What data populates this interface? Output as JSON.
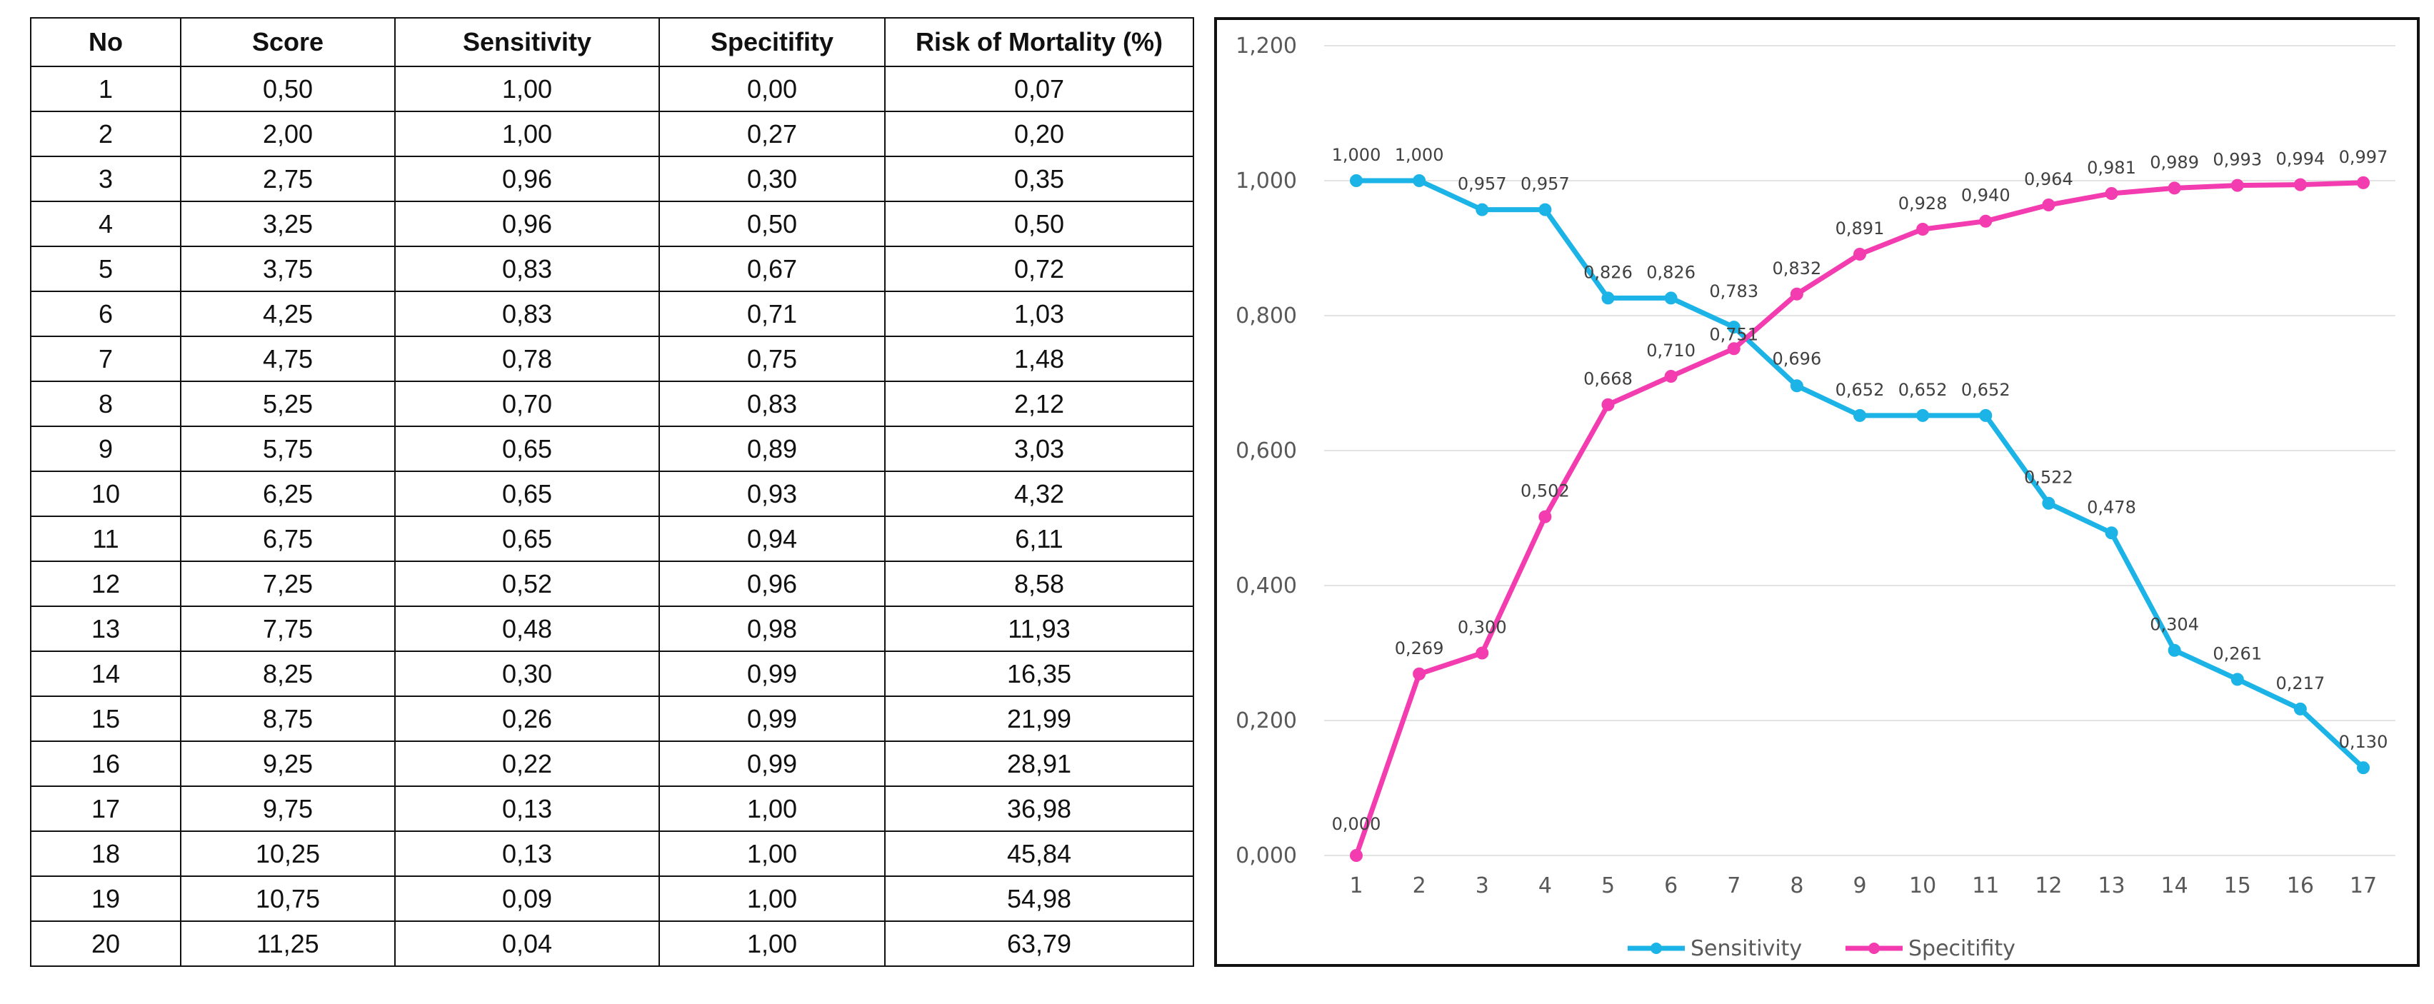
{
  "table": {
    "headers": [
      "No",
      "Score",
      "Sensitivity",
      "Specitifity",
      "Risk of Mortality (%)"
    ],
    "rows": [
      [
        "1",
        "0,50",
        "1,00",
        "0,00",
        "0,07"
      ],
      [
        "2",
        "2,00",
        "1,00",
        "0,27",
        "0,20"
      ],
      [
        "3",
        "2,75",
        "0,96",
        "0,30",
        "0,35"
      ],
      [
        "4",
        "3,25",
        "0,96",
        "0,50",
        "0,50"
      ],
      [
        "5",
        "3,75",
        "0,83",
        "0,67",
        "0,72"
      ],
      [
        "6",
        "4,25",
        "0,83",
        "0,71",
        "1,03"
      ],
      [
        "7",
        "4,75",
        "0,78",
        "0,75",
        "1,48"
      ],
      [
        "8",
        "5,25",
        "0,70",
        "0,83",
        "2,12"
      ],
      [
        "9",
        "5,75",
        "0,65",
        "0,89",
        "3,03"
      ],
      [
        "10",
        "6,25",
        "0,65",
        "0,93",
        "4,32"
      ],
      [
        "11",
        "6,75",
        "0,65",
        "0,94",
        "6,11"
      ],
      [
        "12",
        "7,25",
        "0,52",
        "0,96",
        "8,58"
      ],
      [
        "13",
        "7,75",
        "0,48",
        "0,98",
        "11,93"
      ],
      [
        "14",
        "8,25",
        "0,30",
        "0,99",
        "16,35"
      ],
      [
        "15",
        "8,75",
        "0,26",
        "0,99",
        "21,99"
      ],
      [
        "16",
        "9,25",
        "0,22",
        "0,99",
        "28,91"
      ],
      [
        "17",
        "9,75",
        "0,13",
        "1,00",
        "36,98"
      ],
      [
        "18",
        "10,25",
        "0,13",
        "1,00",
        "45,84"
      ],
      [
        "19",
        "10,75",
        "0,09",
        "1,00",
        "54,98"
      ],
      [
        "20",
        "11,25",
        "0,04",
        "1,00",
        "63,79"
      ]
    ]
  },
  "chart_data": {
    "type": "line",
    "title": "",
    "xlabel": "",
    "ylabel": "",
    "x": [
      1,
      2,
      3,
      4,
      5,
      6,
      7,
      8,
      9,
      10,
      11,
      12,
      13,
      14,
      15,
      16,
      17
    ],
    "ylim": [
      0,
      1.2
    ],
    "yticks": [
      0,
      0.2,
      0.4,
      0.6,
      0.8,
      1.0,
      1.2
    ],
    "ytick_labels": [
      "0,000",
      "0,200",
      "0,400",
      "0,600",
      "0,800",
      "1,000",
      "1,200"
    ],
    "grid": true,
    "legend_position": "bottom",
    "series": [
      {
        "name": "Sensitivity",
        "color": "#1CB3E6",
        "values": [
          1.0,
          1.0,
          0.957,
          0.957,
          0.826,
          0.826,
          0.783,
          0.696,
          0.652,
          0.652,
          0.652,
          0.522,
          0.478,
          0.304,
          0.261,
          0.217,
          0.13
        ],
        "labels": [
          "1,000",
          "1,000",
          "0,957",
          "0,957",
          "0,826",
          "0,826",
          "0,783",
          "0,696",
          "0,652",
          "0,652",
          "0,652",
          "0,522",
          "0,478",
          "0,304",
          "0,261",
          "0,217",
          "0,130"
        ]
      },
      {
        "name": "Specitifity",
        "color": "#F23CB0",
        "values": [
          0.0,
          0.269,
          0.3,
          0.502,
          0.668,
          0.71,
          0.751,
          0.832,
          0.891,
          0.928,
          0.94,
          0.964,
          0.981,
          0.989,
          0.993,
          0.994,
          0.997
        ],
        "labels": [
          "0,000",
          "0,269",
          "0,300",
          "0,502",
          "0,668",
          "0,710",
          "0,751",
          "0,832",
          "0,891",
          "0,928",
          "0,940",
          "0,964",
          "0,981",
          "0,989",
          "0,993",
          "0,994",
          "0,997"
        ]
      }
    ]
  }
}
